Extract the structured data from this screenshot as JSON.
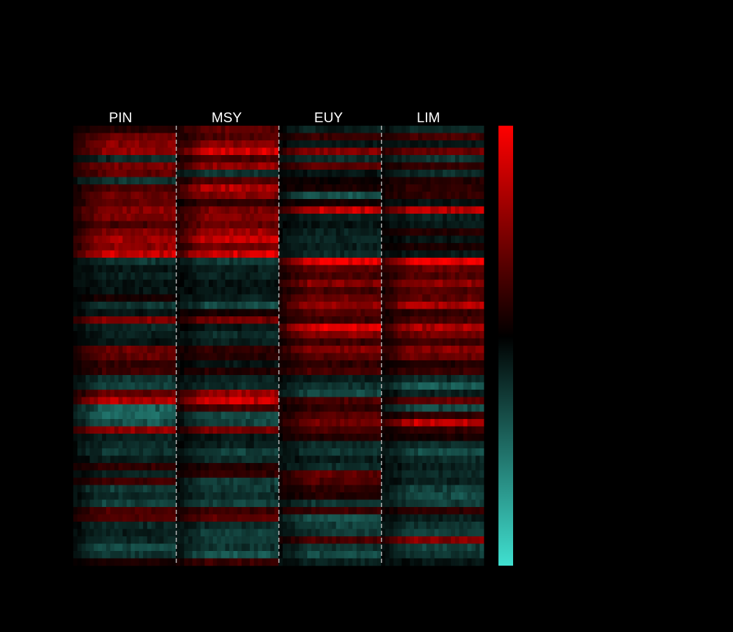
{
  "chart_data": {
    "type": "heatmap",
    "title": "",
    "xlabel": "",
    "ylabel": "",
    "panels": [
      "PIN",
      "MSY",
      "EUY",
      "LIM"
    ],
    "rows": 60,
    "cols_per_panel": 25,
    "value_range": [
      -1,
      1
    ],
    "colorbar": {
      "position": "right",
      "ticks": []
    },
    "colors": {
      "background": "#000000",
      "positive": "#ff0000",
      "zero": "#000000",
      "negative": "#40e0d0",
      "separator": "#bbbbbb",
      "label": "#ffffff"
    },
    "row_profiles": [
      {
        "PIN": 0.15,
        "MSY": 0.4,
        "EUY": -0.15,
        "LIM": -0.2
      },
      {
        "PIN": 0.45,
        "MSY": 0.35,
        "EUY": 0.25,
        "LIM": 0.3
      },
      {
        "PIN": 0.55,
        "MSY": 0.55,
        "EUY": -0.1,
        "LIM": -0.1
      },
      {
        "PIN": 0.6,
        "MSY": 0.9,
        "EUY": 0.55,
        "LIM": 0.45
      },
      {
        "PIN": -0.2,
        "MSY": 0.3,
        "EUY": -0.2,
        "LIM": -0.25
      },
      {
        "PIN": 0.5,
        "MSY": 0.6,
        "EUY": 0.4,
        "LIM": 0.2
      },
      {
        "PIN": 0.4,
        "MSY": -0.25,
        "EUY": -0.1,
        "LIM": -0.2
      },
      {
        "PIN": -0.25,
        "MSY": 0.35,
        "EUY": 0.05,
        "LIM": 0.15
      },
      {
        "PIN": 0.3,
        "MSY": 0.75,
        "EUY": 0.1,
        "LIM": 0.2
      },
      {
        "PIN": 0.45,
        "MSY": 0.55,
        "EUY": -0.4,
        "LIM": 0.2
      },
      {
        "PIN": 0.4,
        "MSY": 0.2,
        "EUY": 0.1,
        "LIM": -0.1
      },
      {
        "PIN": 0.55,
        "MSY": 0.5,
        "EUY": 0.85,
        "LIM": 0.8
      },
      {
        "PIN": 0.5,
        "MSY": 0.55,
        "EUY": -0.15,
        "LIM": -0.15
      },
      {
        "PIN": 0.3,
        "MSY": 0.45,
        "EUY": -0.1,
        "LIM": -0.1
      },
      {
        "PIN": 0.55,
        "MSY": 0.65,
        "EUY": -0.15,
        "LIM": 0.15
      },
      {
        "PIN": 0.7,
        "MSY": 0.85,
        "EUY": -0.2,
        "LIM": -0.1
      },
      {
        "PIN": 0.6,
        "MSY": 0.5,
        "EUY": -0.15,
        "LIM": 0.1
      },
      {
        "PIN": 0.85,
        "MSY": 0.9,
        "EUY": -0.2,
        "LIM": -0.1
      },
      {
        "PIN": -0.25,
        "MSY": -0.3,
        "EUY": 1.0,
        "LIM": 1.0
      },
      {
        "PIN": -0.1,
        "MSY": -0.15,
        "EUY": 0.4,
        "LIM": 0.45
      },
      {
        "PIN": -0.15,
        "MSY": -0.15,
        "EUY": 0.3,
        "LIM": 0.35
      },
      {
        "PIN": -0.1,
        "MSY": -0.1,
        "EUY": 0.55,
        "LIM": 0.6
      },
      {
        "PIN": -0.1,
        "MSY": -0.1,
        "EUY": 0.3,
        "LIM": 0.35
      },
      {
        "PIN": 0.1,
        "MSY": -0.15,
        "EUY": 0.45,
        "LIM": 0.4
      },
      {
        "PIN": -0.25,
        "MSY": -0.35,
        "EUY": 0.6,
        "LIM": 0.75
      },
      {
        "PIN": -0.1,
        "MSY": 0.1,
        "EUY": 0.35,
        "LIM": 0.2
      },
      {
        "PIN": 0.55,
        "MSY": 0.5,
        "EUY": 0.25,
        "LIM": 0.3
      },
      {
        "PIN": -0.2,
        "MSY": -0.1,
        "EUY": 0.95,
        "LIM": 0.7
      },
      {
        "PIN": -0.15,
        "MSY": -0.2,
        "EUY": 0.55,
        "LIM": 0.5
      },
      {
        "PIN": -0.1,
        "MSY": -0.15,
        "EUY": 0.25,
        "LIM": 0.25
      },
      {
        "PIN": 0.45,
        "MSY": 0.2,
        "EUY": 0.55,
        "LIM": 0.55
      },
      {
        "PIN": 0.4,
        "MSY": 0.15,
        "EUY": 0.35,
        "LIM": 0.45
      },
      {
        "PIN": 0.2,
        "MSY": -0.1,
        "EUY": 0.2,
        "LIM": 0.15
      },
      {
        "PIN": 0.25,
        "MSY": 0.15,
        "EUY": 0.3,
        "LIM": 0.25
      },
      {
        "PIN": -0.25,
        "MSY": -0.15,
        "EUY": -0.15,
        "LIM": -0.2
      },
      {
        "PIN": -0.3,
        "MSY": -0.2,
        "EUY": -0.25,
        "LIM": -0.45
      },
      {
        "PIN": 0.4,
        "MSY": 0.65,
        "EUY": -0.35,
        "LIM": -0.15
      },
      {
        "PIN": 0.75,
        "MSY": 0.85,
        "EUY": 0.3,
        "LIM": 0.4
      },
      {
        "PIN": -0.45,
        "MSY": 0.3,
        "EUY": 0.2,
        "LIM": -0.35
      },
      {
        "PIN": -0.5,
        "MSY": -0.35,
        "EUY": 0.35,
        "LIM": 0.2
      },
      {
        "PIN": -0.4,
        "MSY": -0.3,
        "EUY": 0.45,
        "LIM": 0.8
      },
      {
        "PIN": 0.6,
        "MSY": 0.5,
        "EUY": 0.3,
        "LIM": 0.2
      },
      {
        "PIN": -0.15,
        "MSY": -0.1,
        "EUY": 0.15,
        "LIM": 0.1
      },
      {
        "PIN": -0.2,
        "MSY": -0.15,
        "EUY": -0.2,
        "LIM": -0.2
      },
      {
        "PIN": -0.25,
        "MSY": -0.3,
        "EUY": -0.25,
        "LIM": -0.35
      },
      {
        "PIN": -0.15,
        "MSY": -0.2,
        "EUY": -0.15,
        "LIM": -0.2
      },
      {
        "PIN": 0.2,
        "MSY": 0.15,
        "EUY": -0.2,
        "LIM": -0.15
      },
      {
        "PIN": -0.15,
        "MSY": 0.2,
        "EUY": 0.4,
        "LIM": -0.2
      },
      {
        "PIN": 0.25,
        "MSY": -0.3,
        "EUY": 0.35,
        "LIM": -0.15
      },
      {
        "PIN": -0.3,
        "MSY": -0.25,
        "EUY": 0.2,
        "LIM": -0.3
      },
      {
        "PIN": -0.2,
        "MSY": -0.2,
        "EUY": 0.15,
        "LIM": -0.35
      },
      {
        "PIN": -0.3,
        "MSY": -0.3,
        "EUY": -0.25,
        "LIM": -0.3
      },
      {
        "PIN": 0.3,
        "MSY": 0.25,
        "EUY": 0.25,
        "LIM": 0.2
      },
      {
        "PIN": 0.35,
        "MSY": 0.4,
        "EUY": -0.4,
        "LIM": -0.15
      },
      {
        "PIN": -0.2,
        "MSY": -0.2,
        "EUY": -0.3,
        "LIM": -0.25
      },
      {
        "PIN": -0.15,
        "MSY": -0.3,
        "EUY": -0.25,
        "LIM": -0.3
      },
      {
        "PIN": -0.2,
        "MSY": -0.3,
        "EUY": 0.3,
        "LIM": 0.55
      },
      {
        "PIN": -0.35,
        "MSY": -0.25,
        "EUY": -0.25,
        "LIM": -0.3
      },
      {
        "PIN": -0.25,
        "MSY": -0.4,
        "EUY": -0.35,
        "LIM": -0.25
      },
      {
        "PIN": 0.1,
        "MSY": 0.25,
        "EUY": -0.15,
        "LIM": -0.1
      }
    ]
  }
}
